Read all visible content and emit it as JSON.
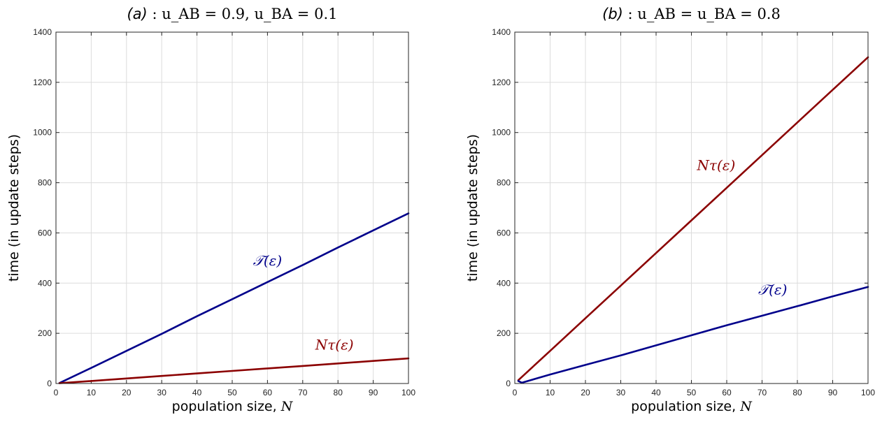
{
  "chart_data": [
    {
      "type": "line",
      "title_tag": "(a)",
      "title_rest": " : u_AB = 0.9,  u_BA = 0.1",
      "xlabel": "population size, ",
      "xlabel_var": "N",
      "ylabel": "time (in update steps)",
      "xlim": [
        0,
        100
      ],
      "ylim": [
        0,
        1400
      ],
      "xticks": [
        0,
        10,
        20,
        30,
        40,
        50,
        60,
        70,
        80,
        90,
        100
      ],
      "yticks": [
        0,
        200,
        400,
        600,
        800,
        1000,
        1200,
        1400
      ],
      "grid": true,
      "series": [
        {
          "name": "𝒯(ε)",
          "color": "#00008b",
          "x": [
            1,
            10,
            20,
            30,
            40,
            50,
            60,
            70,
            80,
            90,
            100
          ],
          "y": [
            2,
            62,
            130,
            198,
            268,
            336,
            404,
            472,
            542,
            610,
            678
          ],
          "label_anchor": {
            "x": 60,
            "y": 470
          }
        },
        {
          "name": "Nτ(ε)",
          "color": "#8b0000",
          "x": [
            1,
            10,
            20,
            30,
            40,
            50,
            60,
            70,
            80,
            90,
            100
          ],
          "y": [
            1,
            10,
            20,
            30,
            40,
            50,
            60,
            70,
            80,
            90,
            100
          ],
          "label_anchor": {
            "x": 79,
            "y": 135
          }
        }
      ]
    },
    {
      "type": "line",
      "title_tag": "(b)",
      "title_rest": " : u_AB = u_BA = 0.8",
      "xlabel": "population size, ",
      "xlabel_var": "N",
      "ylabel": "time (in update steps)",
      "xlim": [
        0,
        100
      ],
      "ylim": [
        0,
        1400
      ],
      "xticks": [
        0,
        10,
        20,
        30,
        40,
        50,
        60,
        70,
        80,
        90,
        100
      ],
      "yticks": [
        0,
        200,
        400,
        600,
        800,
        1000,
        1200,
        1400
      ],
      "grid": true,
      "series": [
        {
          "name": "Nτ(ε)",
          "color": "#8b0000",
          "x": [
            1,
            10,
            20,
            30,
            40,
            50,
            60,
            70,
            80,
            90,
            100
          ],
          "y": [
            13,
            130,
            260,
            390,
            520,
            650,
            780,
            910,
            1040,
            1170,
            1300
          ],
          "label_anchor": {
            "x": 57,
            "y": 850
          }
        },
        {
          "name": "𝒯(ε)",
          "color": "#00008b",
          "x": [
            1,
            2,
            10,
            20,
            30,
            40,
            50,
            60,
            70,
            80,
            90,
            100
          ],
          "y": [
            10,
            3,
            36,
            74,
            112,
            152,
            192,
            232,
            270,
            308,
            347,
            385
          ],
          "label_anchor": {
            "x": 73,
            "y": 355
          }
        }
      ]
    }
  ]
}
